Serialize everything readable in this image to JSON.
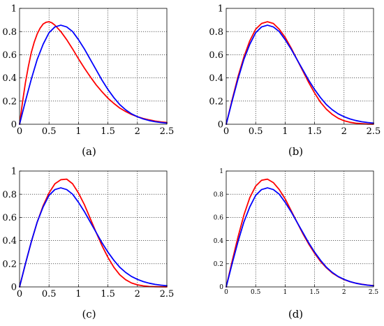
{
  "chart_data": [
    {
      "type": "line",
      "caption": "(a)",
      "xlim": [
        0,
        2.5
      ],
      "ylim": [
        0,
        1
      ],
      "xticks": [
        "0",
        "0.5",
        "1",
        "1.5",
        "2",
        "2.5"
      ],
      "yticks": [
        "0",
        "0.2",
        "0.4",
        "0.6",
        "0.8",
        "1"
      ],
      "grid": true,
      "series": [
        {
          "color": "#ff0000",
          "x": [
            0,
            0.05,
            0.1,
            0.15,
            0.2,
            0.25,
            0.3,
            0.35,
            0.4,
            0.45,
            0.5,
            0.55,
            0.6,
            0.7,
            0.8,
            0.9,
            1.0,
            1.1,
            1.2,
            1.3,
            1.4,
            1.5,
            1.6,
            1.7,
            1.8,
            1.9,
            2.0,
            2.1,
            2.2,
            2.3,
            2.4,
            2.5
          ],
          "y": [
            0,
            0.19,
            0.36,
            0.5,
            0.62,
            0.71,
            0.78,
            0.83,
            0.865,
            0.88,
            0.885,
            0.875,
            0.855,
            0.8,
            0.73,
            0.65,
            0.565,
            0.485,
            0.41,
            0.34,
            0.28,
            0.225,
            0.18,
            0.14,
            0.11,
            0.085,
            0.065,
            0.05,
            0.038,
            0.028,
            0.02,
            0.015
          ]
        },
        {
          "color": "#0000ff",
          "x": [
            0,
            0.1,
            0.2,
            0.3,
            0.4,
            0.5,
            0.6,
            0.7,
            0.8,
            0.9,
            1.0,
            1.1,
            1.2,
            1.3,
            1.4,
            1.5,
            1.6,
            1.7,
            1.8,
            1.9,
            2.0,
            2.1,
            2.2,
            2.3,
            2.4,
            2.5
          ],
          "y": [
            0,
            0.2,
            0.39,
            0.56,
            0.69,
            0.79,
            0.84,
            0.855,
            0.84,
            0.8,
            0.73,
            0.65,
            0.56,
            0.47,
            0.38,
            0.3,
            0.23,
            0.17,
            0.125,
            0.09,
            0.065,
            0.046,
            0.032,
            0.022,
            0.015,
            0.01
          ]
        }
      ]
    },
    {
      "type": "line",
      "caption": "(b)",
      "xlim": [
        0,
        2.5
      ],
      "ylim": [
        0,
        1
      ],
      "xticks": [
        "0",
        "0.5",
        "1",
        "1.5",
        "2",
        "2.5"
      ],
      "yticks": [
        "0",
        "0.2",
        "0.4",
        "0.6",
        "0.8",
        "1"
      ],
      "grid": true,
      "series": [
        {
          "color": "#ff0000",
          "x": [
            0,
            0.1,
            0.2,
            0.3,
            0.4,
            0.5,
            0.6,
            0.7,
            0.8,
            0.9,
            1.0,
            1.1,
            1.2,
            1.3,
            1.4,
            1.5,
            1.6,
            1.7,
            1.8,
            1.9,
            2.0,
            2.1,
            2.2,
            2.3,
            2.4,
            2.5
          ],
          "y": [
            0,
            0.21,
            0.41,
            0.58,
            0.72,
            0.82,
            0.87,
            0.885,
            0.87,
            0.82,
            0.75,
            0.66,
            0.56,
            0.46,
            0.36,
            0.27,
            0.19,
            0.13,
            0.085,
            0.052,
            0.03,
            0.017,
            0.009,
            0.005,
            0.002,
            0.001
          ]
        },
        {
          "color": "#0000ff",
          "x": [
            0,
            0.1,
            0.2,
            0.3,
            0.4,
            0.5,
            0.6,
            0.7,
            0.8,
            0.9,
            1.0,
            1.1,
            1.2,
            1.3,
            1.4,
            1.5,
            1.6,
            1.7,
            1.8,
            1.9,
            2.0,
            2.1,
            2.2,
            2.3,
            2.4,
            2.5
          ],
          "y": [
            0,
            0.2,
            0.39,
            0.56,
            0.69,
            0.79,
            0.84,
            0.855,
            0.84,
            0.8,
            0.73,
            0.65,
            0.56,
            0.47,
            0.38,
            0.3,
            0.23,
            0.17,
            0.125,
            0.09,
            0.065,
            0.046,
            0.032,
            0.022,
            0.015,
            0.01
          ]
        }
      ]
    },
    {
      "type": "line",
      "caption": "(c)",
      "xlim": [
        0,
        2.5
      ],
      "ylim": [
        0,
        1
      ],
      "xticks": [
        "0",
        "0.5",
        "1",
        "1.5",
        "2",
        "2.5"
      ],
      "yticks": [
        "0",
        "0.2",
        "0.4",
        "0.6",
        "0.8",
        "1"
      ],
      "grid": true,
      "series": [
        {
          "color": "#ff0000",
          "x": [
            0,
            0.1,
            0.2,
            0.3,
            0.4,
            0.5,
            0.6,
            0.7,
            0.8,
            0.9,
            1.0,
            1.1,
            1.2,
            1.3,
            1.4,
            1.5,
            1.6,
            1.7,
            1.8,
            1.9,
            2.0,
            2.1,
            2.2,
            2.3,
            2.4,
            2.5
          ],
          "y": [
            0,
            0.2,
            0.39,
            0.56,
            0.7,
            0.81,
            0.89,
            0.925,
            0.93,
            0.89,
            0.81,
            0.71,
            0.59,
            0.47,
            0.355,
            0.255,
            0.17,
            0.105,
            0.062,
            0.034,
            0.018,
            0.009,
            0.004,
            0.002,
            0.001,
            0
          ]
        },
        {
          "color": "#0000ff",
          "x": [
            0,
            0.1,
            0.2,
            0.3,
            0.4,
            0.5,
            0.6,
            0.7,
            0.8,
            0.9,
            1.0,
            1.1,
            1.2,
            1.3,
            1.4,
            1.5,
            1.6,
            1.7,
            1.8,
            1.9,
            2.0,
            2.1,
            2.2,
            2.3,
            2.4,
            2.5
          ],
          "y": [
            0,
            0.2,
            0.39,
            0.56,
            0.69,
            0.79,
            0.84,
            0.855,
            0.84,
            0.8,
            0.73,
            0.65,
            0.56,
            0.47,
            0.38,
            0.3,
            0.23,
            0.17,
            0.125,
            0.09,
            0.065,
            0.046,
            0.032,
            0.022,
            0.015,
            0.01
          ]
        }
      ]
    },
    {
      "type": "line",
      "caption": "(d)",
      "xlim": [
        0,
        2.5
      ],
      "ylim": [
        0,
        1
      ],
      "xticks": [
        "0",
        "0.5",
        "1",
        "1.5",
        "2",
        "2.5"
      ],
      "yticks": [
        "0",
        "0.2",
        "0.4",
        "0.6",
        "0.8",
        "1"
      ],
      "grid": true,
      "series": [
        {
          "color": "#ff0000",
          "x": [
            0,
            0.1,
            0.2,
            0.3,
            0.4,
            0.5,
            0.6,
            0.7,
            0.8,
            0.9,
            1.0,
            1.1,
            1.2,
            1.3,
            1.4,
            1.5,
            1.6,
            1.7,
            1.8,
            1.9,
            2.0,
            2.1,
            2.2,
            2.3,
            2.4,
            2.5
          ],
          "y": [
            0,
            0.22,
            0.43,
            0.62,
            0.77,
            0.87,
            0.92,
            0.93,
            0.9,
            0.84,
            0.76,
            0.66,
            0.56,
            0.46,
            0.37,
            0.29,
            0.22,
            0.165,
            0.12,
            0.088,
            0.063,
            0.045,
            0.032,
            0.023,
            0.016,
            0.011
          ]
        },
        {
          "color": "#0000ff",
          "x": [
            0,
            0.1,
            0.2,
            0.3,
            0.4,
            0.5,
            0.6,
            0.7,
            0.8,
            0.9,
            1.0,
            1.1,
            1.2,
            1.3,
            1.4,
            1.5,
            1.6,
            1.7,
            1.8,
            1.9,
            2.0,
            2.1,
            2.2,
            2.3,
            2.4,
            2.5
          ],
          "y": [
            0,
            0.2,
            0.39,
            0.56,
            0.69,
            0.79,
            0.84,
            0.855,
            0.84,
            0.8,
            0.73,
            0.65,
            0.56,
            0.47,
            0.38,
            0.3,
            0.23,
            0.17,
            0.125,
            0.09,
            0.065,
            0.046,
            0.032,
            0.022,
            0.015,
            0.01
          ]
        }
      ]
    }
  ]
}
